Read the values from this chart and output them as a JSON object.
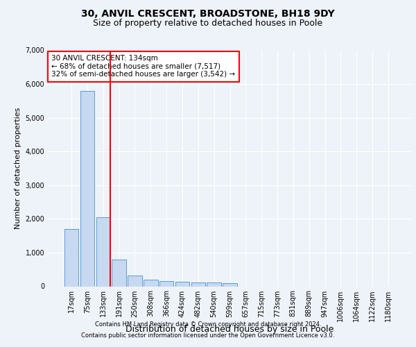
{
  "title1": "30, ANVIL CRESCENT, BROADSTONE, BH18 9DY",
  "title2": "Size of property relative to detached houses in Poole",
  "xlabel": "Distribution of detached houses by size in Poole",
  "ylabel": "Number of detached properties",
  "categories": [
    "17sqm",
    "75sqm",
    "133sqm",
    "191sqm",
    "250sqm",
    "308sqm",
    "366sqm",
    "424sqm",
    "482sqm",
    "540sqm",
    "599sqm",
    "657sqm",
    "715sqm",
    "773sqm",
    "831sqm",
    "889sqm",
    "947sqm",
    "1006sqm",
    "1064sqm",
    "1122sqm",
    "1180sqm"
  ],
  "values": [
    1700,
    5800,
    2050,
    800,
    310,
    190,
    145,
    125,
    115,
    110,
    100,
    0,
    0,
    0,
    0,
    0,
    0,
    0,
    0,
    0,
    0
  ],
  "bar_color": "#c6d9f0",
  "bar_edge_color": "#5b9bd5",
  "vline_x_index": 2,
  "vline_color": "red",
  "annotation_text_line1": "30 ANVIL CRESCENT: 134sqm",
  "annotation_text_line2": "← 68% of detached houses are smaller (7,517)",
  "annotation_text_line3": "32% of semi-detached houses are larger (3,542) →",
  "annotation_box_color": "white",
  "annotation_box_edge_color": "red",
  "ylim": [
    0,
    7000
  ],
  "yticks": [
    0,
    1000,
    2000,
    3000,
    4000,
    5000,
    6000,
    7000
  ],
  "footer1": "Contains HM Land Registry data © Crown copyright and database right 2024.",
  "footer2": "Contains public sector information licensed under the Open Government Licence v3.0.",
  "bg_color": "#eef3f9",
  "plot_bg_color": "#eef3f9",
  "title1_fontsize": 10,
  "title2_fontsize": 9,
  "ylabel_fontsize": 8,
  "xlabel_fontsize": 9,
  "tick_fontsize": 7,
  "footer_fontsize": 6,
  "annot_fontsize": 7.5
}
